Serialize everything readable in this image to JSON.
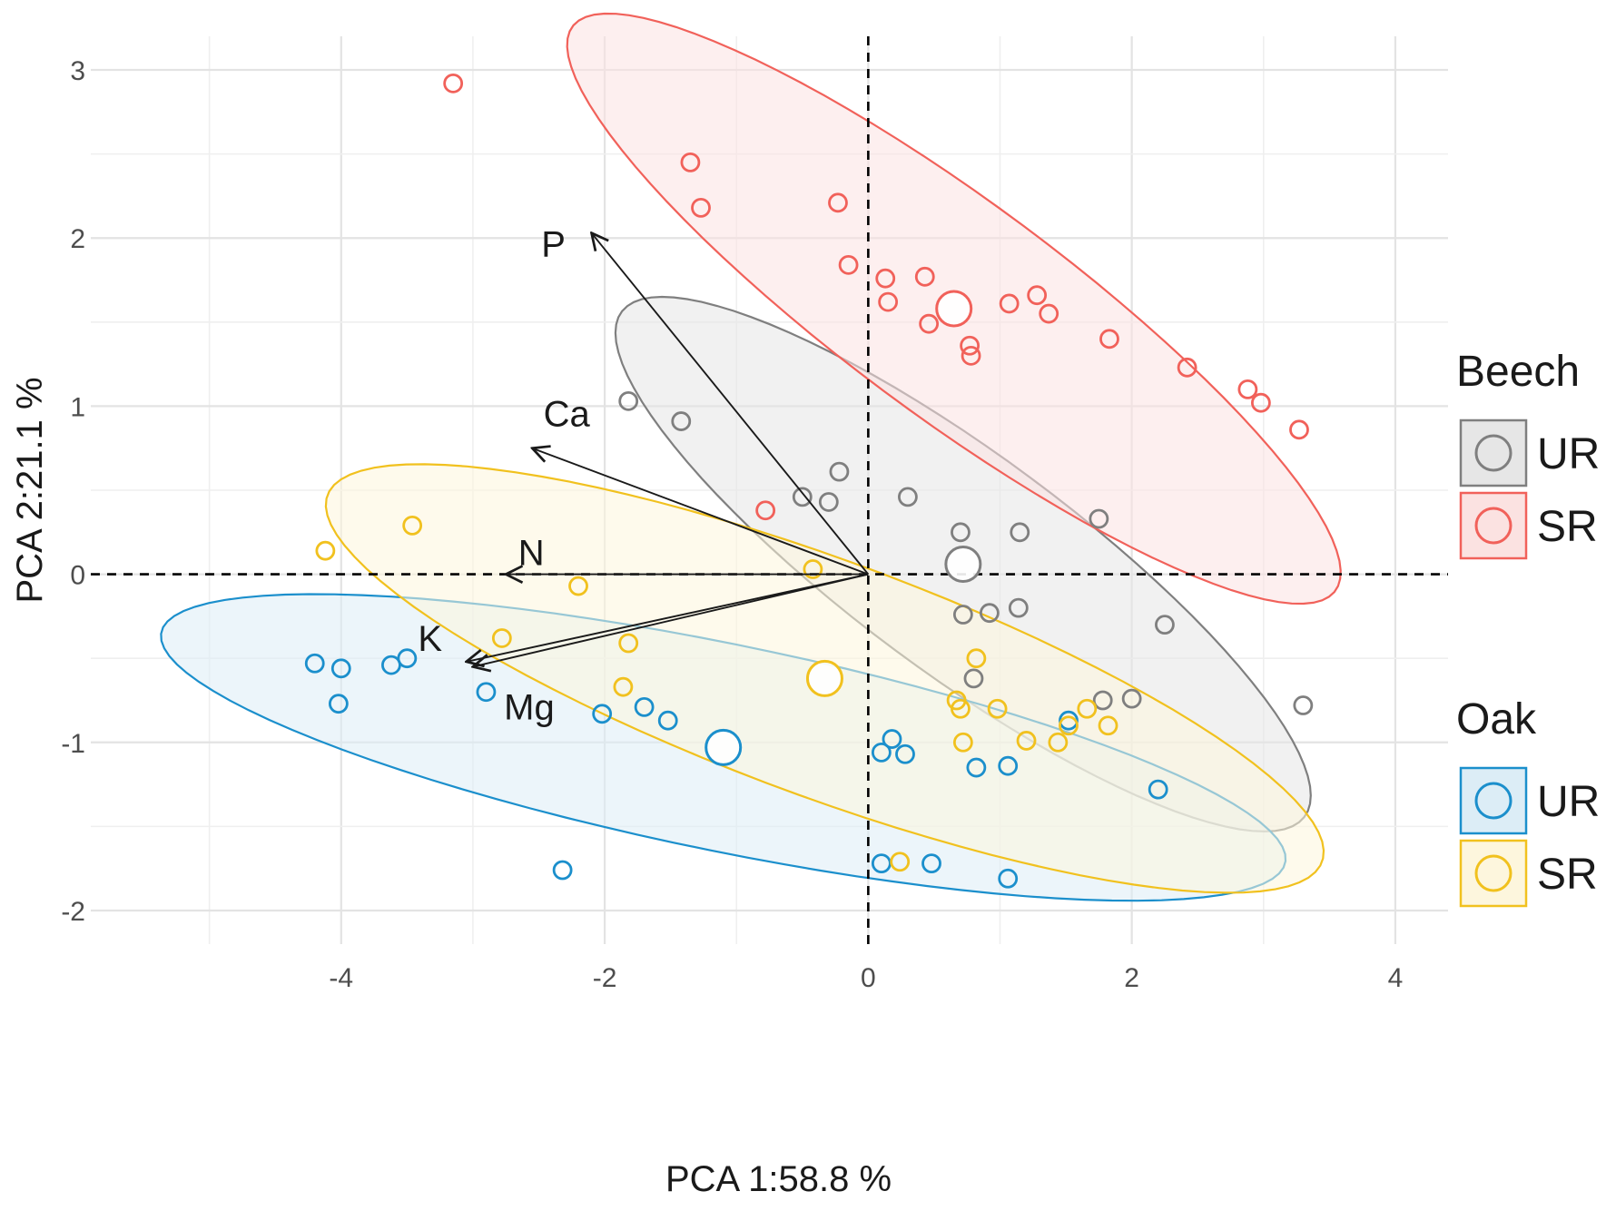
{
  "chart_data": {
    "type": "scatter",
    "subtype": "pca-biplot",
    "title": "",
    "xlabel": "PCA 1:58.8 %",
    "ylabel": "PCA 2:21.1 %",
    "xlim": [
      -5.9,
      4.4
    ],
    "ylim": [
      -2.2,
      3.2
    ],
    "xticks": [
      -4,
      -2,
      0,
      2,
      4
    ],
    "yticks": [
      3,
      2,
      1,
      0,
      -1,
      -2
    ],
    "grid": true,
    "reference_lines": {
      "x": 0,
      "y": 0,
      "style": "dashed"
    },
    "groups": [
      {
        "species": "Beech",
        "name": "UR",
        "color": "#7f7f7f",
        "fill": "#e6e6e6",
        "centroid": [
          0.72,
          0.06
        ],
        "ellipse": {
          "cx": 0.72,
          "cy": 0.06,
          "angle_deg": -29.3,
          "rx": 3.0,
          "ry": 0.7
        },
        "points": [
          [
            -1.82,
            1.03
          ],
          [
            -1.42,
            0.91
          ],
          [
            -0.22,
            0.61
          ],
          [
            -0.5,
            0.46
          ],
          [
            -0.3,
            0.43
          ],
          [
            0.3,
            0.46
          ],
          [
            0.7,
            0.25
          ],
          [
            1.15,
            0.25
          ],
          [
            1.75,
            0.33
          ],
          [
            0.72,
            -0.24
          ],
          [
            0.92,
            -0.23
          ],
          [
            1.14,
            -0.2
          ],
          [
            2.25,
            -0.3
          ],
          [
            0.8,
            -0.62
          ],
          [
            1.78,
            -0.75
          ],
          [
            2.0,
            -0.74
          ],
          [
            3.3,
            -0.78
          ]
        ]
      },
      {
        "species": "Beech",
        "name": "SR",
        "color": "#f1615a",
        "fill": "#fbe2e1",
        "centroid": [
          0.65,
          1.58
        ],
        "ellipse": {
          "cx": 0.65,
          "cy": 1.58,
          "angle_deg": -29.5,
          "rx": 3.35,
          "ry": 0.69
        },
        "points": [
          [
            -3.15,
            2.92
          ],
          [
            -1.35,
            2.45
          ],
          [
            -1.27,
            2.18
          ],
          [
            -0.23,
            2.21
          ],
          [
            -0.15,
            1.84
          ],
          [
            0.13,
            1.76
          ],
          [
            0.43,
            1.77
          ],
          [
            0.15,
            1.62
          ],
          [
            0.46,
            1.49
          ],
          [
            1.07,
            1.61
          ],
          [
            1.28,
            1.66
          ],
          [
            1.37,
            1.55
          ],
          [
            0.77,
            1.36
          ],
          [
            0.78,
            1.3
          ],
          [
            1.83,
            1.4
          ],
          [
            2.42,
            1.23
          ],
          [
            2.88,
            1.1
          ],
          [
            2.98,
            1.02
          ],
          [
            3.27,
            0.86
          ],
          [
            -0.78,
            0.38
          ]
        ]
      },
      {
        "species": "Oak",
        "name": "UR",
        "color": "#1b8fcc",
        "fill": "#dcedf6",
        "centroid": [
          -1.1,
          -1.03
        ],
        "ellipse": {
          "cx": -1.1,
          "cy": -1.03,
          "angle_deg": -9.0,
          "rx": 4.32,
          "ry": 0.62
        },
        "points": [
          [
            -4.2,
            -0.53
          ],
          [
            -4.0,
            -0.56
          ],
          [
            -4.02,
            -0.77
          ],
          [
            -3.62,
            -0.54
          ],
          [
            -3.5,
            -0.5
          ],
          [
            -2.9,
            -0.7
          ],
          [
            -2.02,
            -0.83
          ],
          [
            -1.7,
            -0.79
          ],
          [
            -1.52,
            -0.87
          ],
          [
            0.18,
            -0.98
          ],
          [
            0.1,
            -1.06
          ],
          [
            0.28,
            -1.07
          ],
          [
            0.82,
            -1.15
          ],
          [
            1.06,
            -1.14
          ],
          [
            1.52,
            -0.87
          ],
          [
            2.2,
            -1.28
          ],
          [
            -2.32,
            -1.76
          ],
          [
            0.1,
            -1.72
          ],
          [
            0.48,
            -1.72
          ],
          [
            1.06,
            -1.81
          ]
        ]
      },
      {
        "species": "Oak",
        "name": "SR",
        "color": "#f1c11e",
        "fill": "#fdf6dd",
        "centroid": [
          -0.33,
          -0.62
        ],
        "ellipse": {
          "cx": -0.33,
          "cy": -0.62,
          "angle_deg": -15.8,
          "rx": 3.93,
          "ry": 0.72
        },
        "points": [
          [
            -4.12,
            0.14
          ],
          [
            -3.46,
            0.29
          ],
          [
            -2.2,
            -0.07
          ],
          [
            -0.42,
            0.03
          ],
          [
            -2.78,
            -0.38
          ],
          [
            -1.82,
            -0.41
          ],
          [
            -1.86,
            -0.67
          ],
          [
            0.82,
            -0.5
          ],
          [
            0.67,
            -0.75
          ],
          [
            0.7,
            -0.8
          ],
          [
            0.98,
            -0.8
          ],
          [
            1.66,
            -0.8
          ],
          [
            1.52,
            -0.9
          ],
          [
            1.82,
            -0.9
          ],
          [
            0.72,
            -1.0
          ],
          [
            1.2,
            -0.99
          ],
          [
            1.44,
            -1.0
          ],
          [
            0.24,
            -1.71
          ]
        ]
      }
    ],
    "loadings": [
      {
        "label": "P",
        "x": -2.1,
        "y": 2.03
      },
      {
        "label": "Ca",
        "x": -2.55,
        "y": 0.75
      },
      {
        "label": "N",
        "x": -2.75,
        "y": 0.0
      },
      {
        "label": "K",
        "x": -3.05,
        "y": -0.52
      },
      {
        "label": "Mg",
        "x": -3.0,
        "y": -0.55
      }
    ],
    "legend": [
      {
        "title": "Beech",
        "entries": [
          {
            "label": "UR",
            "group": 0
          },
          {
            "label": "SR",
            "group": 1
          }
        ]
      },
      {
        "title": "Oak",
        "entries": [
          {
            "label": "UR",
            "group": 2
          },
          {
            "label": "SR",
            "group": 3
          }
        ]
      }
    ],
    "legend_position": "right"
  }
}
